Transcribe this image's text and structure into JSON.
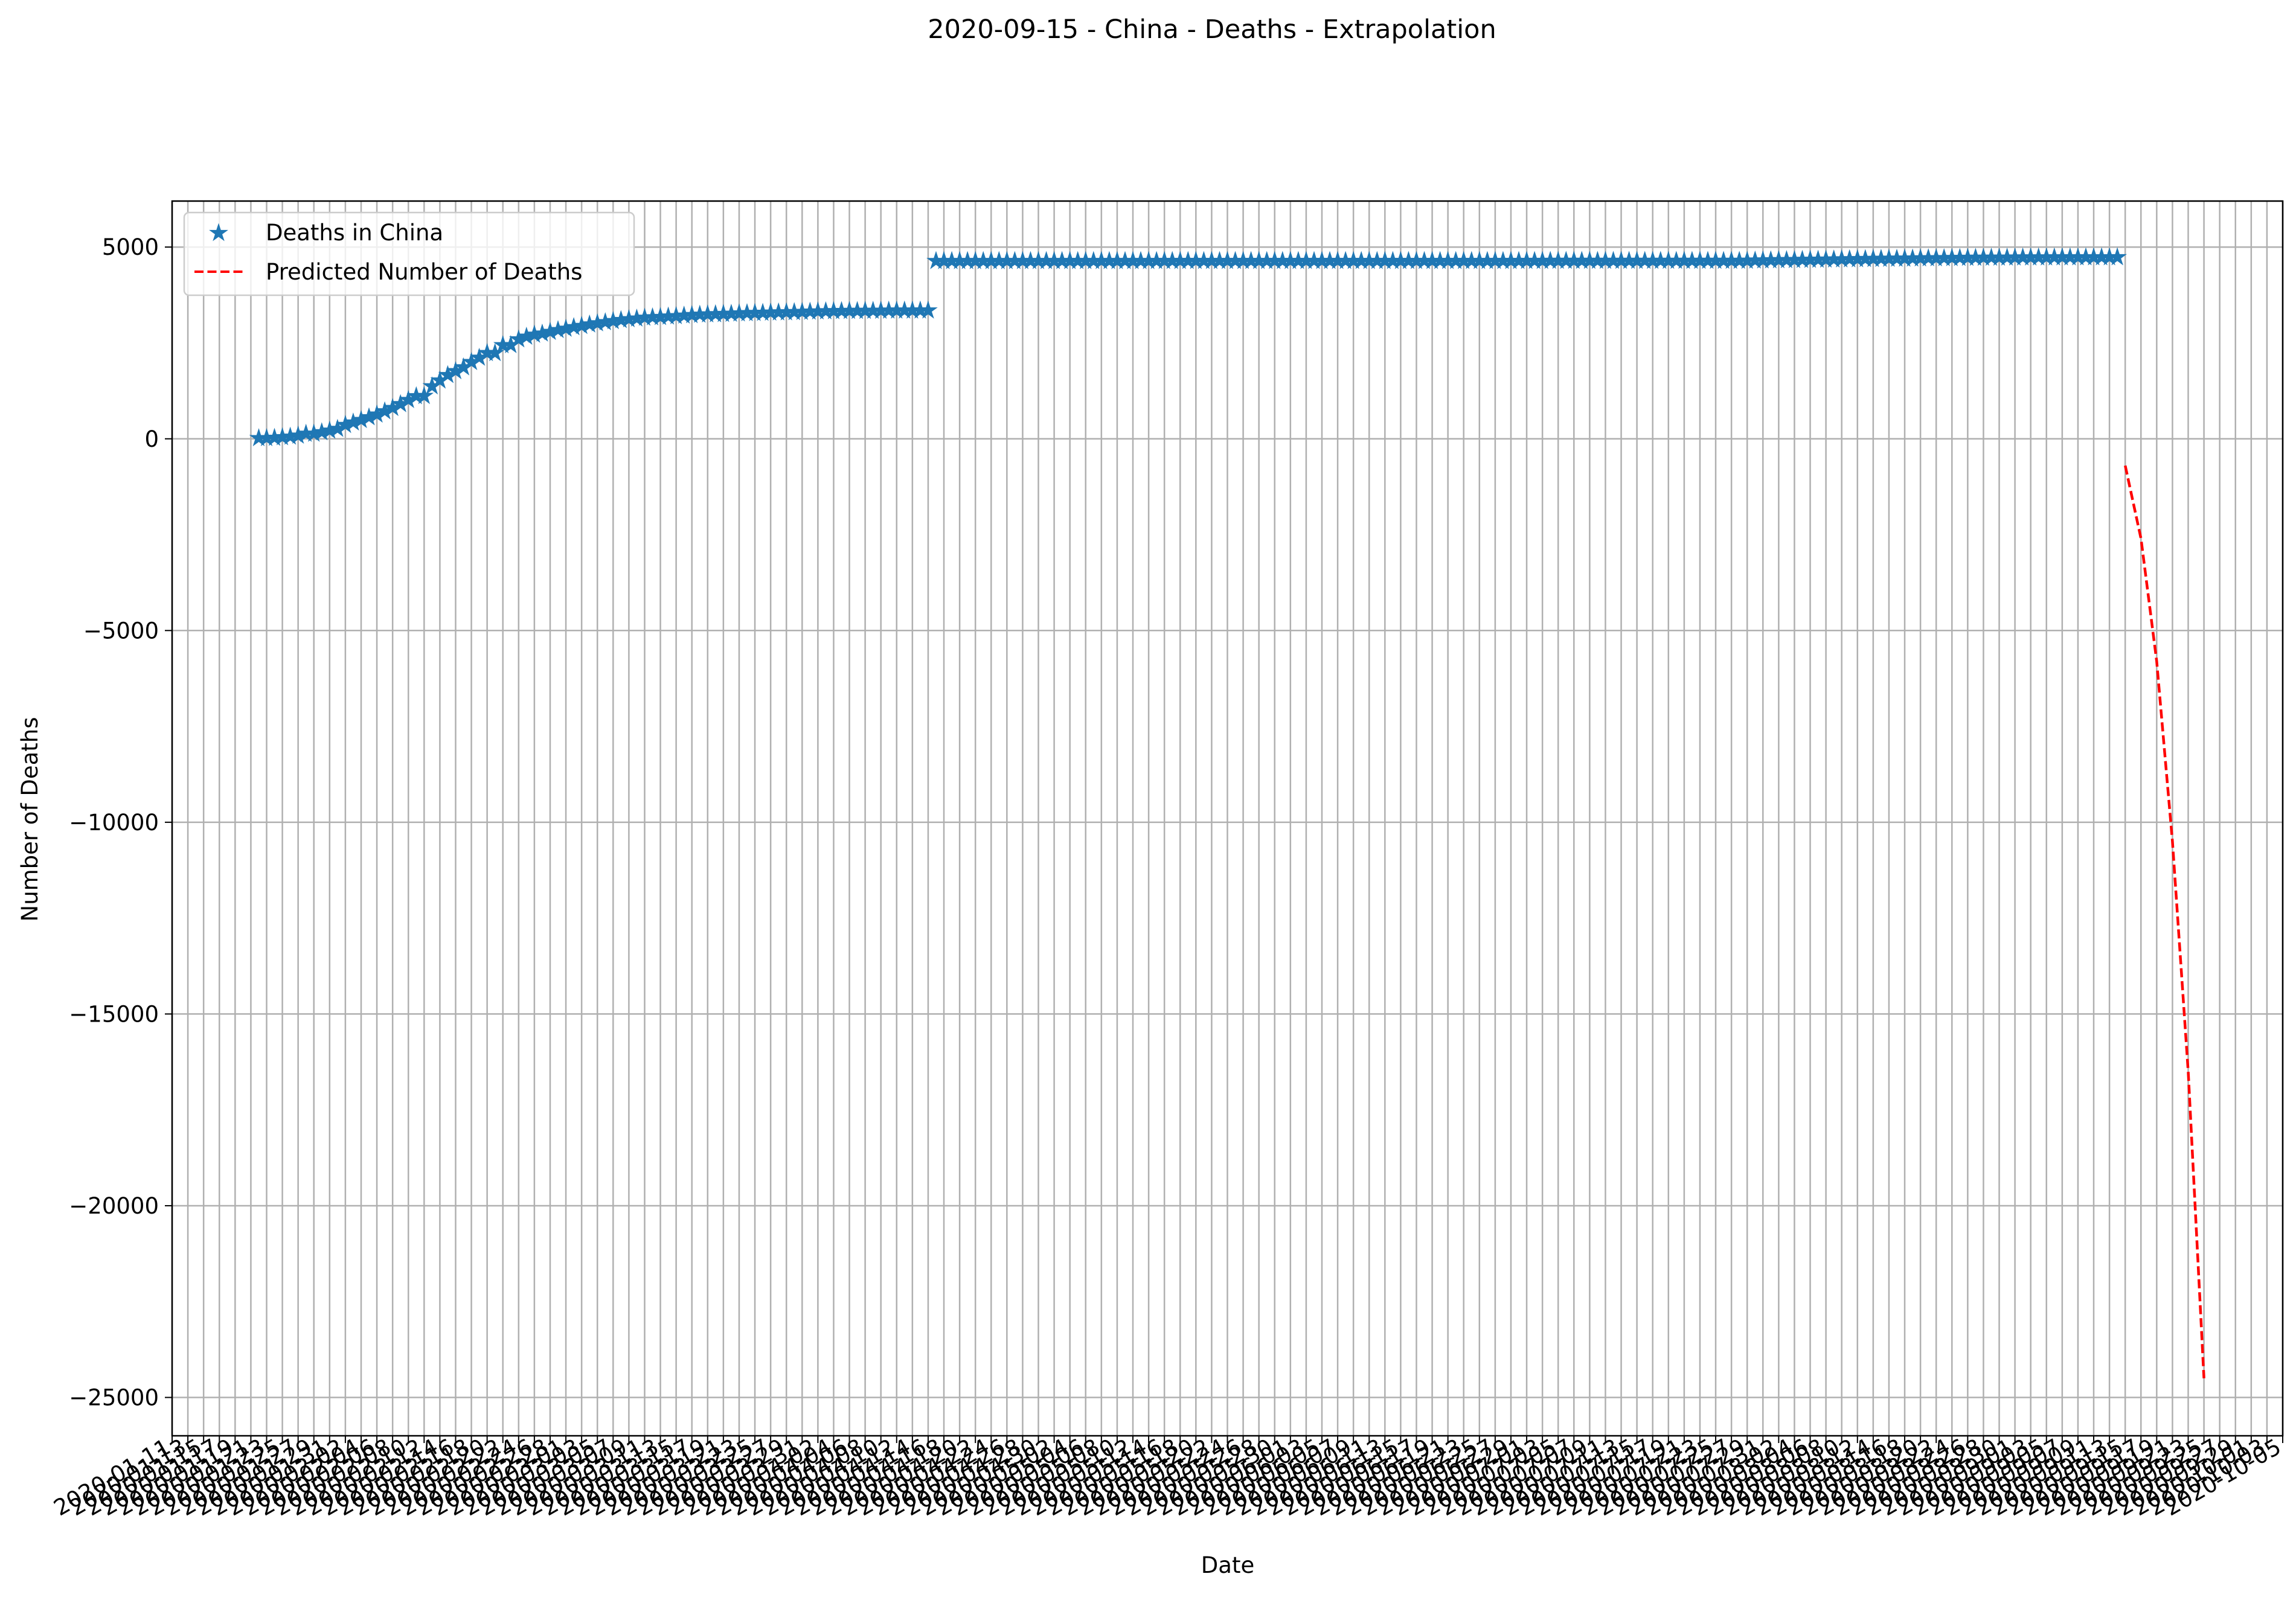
{
  "colors": {
    "actual": "#1f77b4",
    "predicted": "#ff0000",
    "grid": "#b0b0b0",
    "axis": "#000000",
    "legend_border": "#cccccc"
  },
  "chart_data": {
    "type": "line",
    "title": "2020-09-15 - China - Deaths - Extrapolation",
    "xlabel": "Date",
    "ylabel": "Number of Deaths",
    "x_type": "date",
    "xlim": [
      "2020-01-11",
      "2020-10-05"
    ],
    "ylim": [
      -26000,
      6200
    ],
    "y_ticks": [
      5000,
      0,
      -5000,
      -10000,
      -15000,
      -20000,
      -25000
    ],
    "y_tick_labels": [
      "5000",
      "0",
      "−5000",
      "−10000",
      "−15000",
      "−20000",
      "−25000"
    ],
    "x_tick_start": "2020-01-11",
    "x_tick_end": "2020-10-05",
    "x_tick_step_days": 2,
    "x_tick_labels_legible": [
      "2020-01-11",
      "2020-10-03",
      "2020-10-05"
    ],
    "grid": true,
    "legend": {
      "position": "top-left",
      "entries": [
        {
          "label": "Deaths in China",
          "marker": "star",
          "color": "#1f77b4"
        },
        {
          "label": "Predicted Number of Deaths",
          "line": "dashed",
          "color": "#ff0000"
        }
      ]
    },
    "series": [
      {
        "name": "Deaths in China",
        "style": "star-markers",
        "color": "#1f77b4",
        "points": [
          [
            "2020-01-22",
            17
          ],
          [
            "2020-01-23",
            18
          ],
          [
            "2020-01-24",
            26
          ],
          [
            "2020-01-25",
            42
          ],
          [
            "2020-01-26",
            56
          ],
          [
            "2020-01-27",
            82
          ],
          [
            "2020-01-28",
            131
          ],
          [
            "2020-01-29",
            133
          ],
          [
            "2020-01-30",
            171
          ],
          [
            "2020-01-31",
            213
          ],
          [
            "2020-02-01",
            259
          ],
          [
            "2020-02-02",
            361
          ],
          [
            "2020-02-03",
            425
          ],
          [
            "2020-02-04",
            490
          ],
          [
            "2020-02-05",
            562
          ],
          [
            "2020-02-06",
            632
          ],
          [
            "2020-02-07",
            717
          ],
          [
            "2020-02-08",
            804
          ],
          [
            "2020-02-09",
            904
          ],
          [
            "2020-02-10",
            1011
          ],
          [
            "2020-02-11",
            1111
          ],
          [
            "2020-02-12",
            1116
          ],
          [
            "2020-02-13",
            1368
          ],
          [
            "2020-02-14",
            1520
          ],
          [
            "2020-02-15",
            1662
          ],
          [
            "2020-02-16",
            1765
          ],
          [
            "2020-02-17",
            1863
          ],
          [
            "2020-02-18",
            2002
          ],
          [
            "2020-02-19",
            2114
          ],
          [
            "2020-02-20",
            2236
          ],
          [
            "2020-02-21",
            2236
          ],
          [
            "2020-02-22",
            2441
          ],
          [
            "2020-02-23",
            2443
          ],
          [
            "2020-02-24",
            2593
          ],
          [
            "2020-02-25",
            2663
          ],
          [
            "2020-02-26",
            2715
          ],
          [
            "2020-02-27",
            2744
          ],
          [
            "2020-02-28",
            2788
          ],
          [
            "2020-02-29",
            2835
          ],
          [
            "2020-03-01",
            2870
          ],
          [
            "2020-03-02",
            2912
          ],
          [
            "2020-03-03",
            2943
          ],
          [
            "2020-03-04",
            2981
          ],
          [
            "2020-03-05",
            3012
          ],
          [
            "2020-03-06",
            3042
          ],
          [
            "2020-03-07",
            3070
          ],
          [
            "2020-03-08",
            3097
          ],
          [
            "2020-03-09",
            3119
          ],
          [
            "2020-03-10",
            3136
          ],
          [
            "2020-03-11",
            3158
          ],
          [
            "2020-03-12",
            3169
          ],
          [
            "2020-03-13",
            3176
          ],
          [
            "2020-03-14",
            3189
          ],
          [
            "2020-03-15",
            3199
          ],
          [
            "2020-03-16",
            3213
          ],
          [
            "2020-03-17",
            3226
          ],
          [
            "2020-03-18",
            3237
          ],
          [
            "2020-03-19",
            3245
          ],
          [
            "2020-03-20",
            3249
          ],
          [
            "2020-03-21",
            3255
          ],
          [
            "2020-03-22",
            3261
          ],
          [
            "2020-03-23",
            3270
          ],
          [
            "2020-03-24",
            3277
          ],
          [
            "2020-03-25",
            3281
          ],
          [
            "2020-03-26",
            3285
          ],
          [
            "2020-03-27",
            3291
          ],
          [
            "2020-03-28",
            3296
          ],
          [
            "2020-03-29",
            3299
          ],
          [
            "2020-03-30",
            3304
          ],
          [
            "2020-03-31",
            3309
          ],
          [
            "2020-04-01",
            3316
          ],
          [
            "2020-04-02",
            3322
          ],
          [
            "2020-04-03",
            3326
          ],
          [
            "2020-04-04",
            3330
          ],
          [
            "2020-04-05",
            3333
          ],
          [
            "2020-04-06",
            3335
          ],
          [
            "2020-04-07",
            3335
          ],
          [
            "2020-04-08",
            3337
          ],
          [
            "2020-04-09",
            3339
          ],
          [
            "2020-04-10",
            3340
          ],
          [
            "2020-04-11",
            3343
          ],
          [
            "2020-04-12",
            3343
          ],
          [
            "2020-04-13",
            3345
          ],
          [
            "2020-04-14",
            3345
          ],
          [
            "2020-04-15",
            3346
          ],
          [
            "2020-04-16",
            3346
          ],
          [
            "2020-04-17",
            4636
          ],
          [
            "2020-04-18",
            4636
          ],
          [
            "2020-04-19",
            4636
          ],
          [
            "2020-04-20",
            4636
          ],
          [
            "2020-04-21",
            4636
          ],
          [
            "2020-04-22",
            4636
          ],
          [
            "2020-04-23",
            4636
          ],
          [
            "2020-04-24",
            4636
          ],
          [
            "2020-04-25",
            4636
          ],
          [
            "2020-04-26",
            4636
          ],
          [
            "2020-04-27",
            4637
          ],
          [
            "2020-04-28",
            4637
          ],
          [
            "2020-04-29",
            4637
          ],
          [
            "2020-04-30",
            4637
          ],
          [
            "2020-05-01",
            4637
          ],
          [
            "2020-05-02",
            4637
          ],
          [
            "2020-05-03",
            4637
          ],
          [
            "2020-05-04",
            4637
          ],
          [
            "2020-05-05",
            4637
          ],
          [
            "2020-05-06",
            4637
          ],
          [
            "2020-05-07",
            4637
          ],
          [
            "2020-05-08",
            4637
          ],
          [
            "2020-05-09",
            4637
          ],
          [
            "2020-05-10",
            4637
          ],
          [
            "2020-05-11",
            4637
          ],
          [
            "2020-05-12",
            4637
          ],
          [
            "2020-05-13",
            4637
          ],
          [
            "2020-05-14",
            4637
          ],
          [
            "2020-05-15",
            4638
          ],
          [
            "2020-05-16",
            4638
          ],
          [
            "2020-05-17",
            4638
          ],
          [
            "2020-05-18",
            4638
          ],
          [
            "2020-05-19",
            4638
          ],
          [
            "2020-05-20",
            4638
          ],
          [
            "2020-05-21",
            4638
          ],
          [
            "2020-05-22",
            4638
          ],
          [
            "2020-05-23",
            4638
          ],
          [
            "2020-05-24",
            4638
          ],
          [
            "2020-05-25",
            4638
          ],
          [
            "2020-05-26",
            4638
          ],
          [
            "2020-05-27",
            4638
          ],
          [
            "2020-05-28",
            4638
          ],
          [
            "2020-05-29",
            4638
          ],
          [
            "2020-05-30",
            4638
          ],
          [
            "2020-05-31",
            4638
          ],
          [
            "2020-06-01",
            4638
          ],
          [
            "2020-06-02",
            4638
          ],
          [
            "2020-06-03",
            4638
          ],
          [
            "2020-06-04",
            4638
          ],
          [
            "2020-06-05",
            4638
          ],
          [
            "2020-06-06",
            4638
          ],
          [
            "2020-06-07",
            4638
          ],
          [
            "2020-06-08",
            4638
          ],
          [
            "2020-06-09",
            4638
          ],
          [
            "2020-06-10",
            4638
          ],
          [
            "2020-06-11",
            4638
          ],
          [
            "2020-06-12",
            4638
          ],
          [
            "2020-06-13",
            4638
          ],
          [
            "2020-06-14",
            4638
          ],
          [
            "2020-06-15",
            4638
          ],
          [
            "2020-06-16",
            4638
          ],
          [
            "2020-06-17",
            4638
          ],
          [
            "2020-06-18",
            4638
          ],
          [
            "2020-06-19",
            4638
          ],
          [
            "2020-06-20",
            4638
          ],
          [
            "2020-06-21",
            4638
          ],
          [
            "2020-06-22",
            4638
          ],
          [
            "2020-06-23",
            4638
          ],
          [
            "2020-06-24",
            4638
          ],
          [
            "2020-06-25",
            4638
          ],
          [
            "2020-06-26",
            4638
          ],
          [
            "2020-06-27",
            4638
          ],
          [
            "2020-06-28",
            4638
          ],
          [
            "2020-06-29",
            4638
          ],
          [
            "2020-06-30",
            4638
          ],
          [
            "2020-07-01",
            4640
          ],
          [
            "2020-07-02",
            4640
          ],
          [
            "2020-07-03",
            4640
          ],
          [
            "2020-07-04",
            4641
          ],
          [
            "2020-07-05",
            4641
          ],
          [
            "2020-07-06",
            4641
          ],
          [
            "2020-07-07",
            4641
          ],
          [
            "2020-07-08",
            4641
          ],
          [
            "2020-07-09",
            4641
          ],
          [
            "2020-07-10",
            4641
          ],
          [
            "2020-07-11",
            4641
          ],
          [
            "2020-07-12",
            4641
          ],
          [
            "2020-07-13",
            4641
          ],
          [
            "2020-07-14",
            4641
          ],
          [
            "2020-07-15",
            4641
          ],
          [
            "2020-07-16",
            4641
          ],
          [
            "2020-07-17",
            4641
          ],
          [
            "2020-07-18",
            4641
          ],
          [
            "2020-07-19",
            4641
          ],
          [
            "2020-07-20",
            4641
          ],
          [
            "2020-07-21",
            4641
          ],
          [
            "2020-07-22",
            4641
          ],
          [
            "2020-07-23",
            4641
          ],
          [
            "2020-07-24",
            4641
          ],
          [
            "2020-07-25",
            4641
          ],
          [
            "2020-07-26",
            4641
          ],
          [
            "2020-07-27",
            4641
          ],
          [
            "2020-07-28",
            4641
          ],
          [
            "2020-07-29",
            4643
          ],
          [
            "2020-07-30",
            4649
          ],
          [
            "2020-07-31",
            4652
          ],
          [
            "2020-08-01",
            4655
          ],
          [
            "2020-08-02",
            4659
          ],
          [
            "2020-08-03",
            4660
          ],
          [
            "2020-08-04",
            4662
          ],
          [
            "2020-08-05",
            4666
          ],
          [
            "2020-08-06",
            4668
          ],
          [
            "2020-08-07",
            4670
          ],
          [
            "2020-08-08",
            4673
          ],
          [
            "2020-08-09",
            4677
          ],
          [
            "2020-08-10",
            4680
          ],
          [
            "2020-08-11",
            4683
          ],
          [
            "2020-08-12",
            4685
          ],
          [
            "2020-08-13",
            4689
          ],
          [
            "2020-08-14",
            4691
          ],
          [
            "2020-08-15",
            4694
          ],
          [
            "2020-08-16",
            4696
          ],
          [
            "2020-08-17",
            4697
          ],
          [
            "2020-08-18",
            4699
          ],
          [
            "2020-08-19",
            4702
          ],
          [
            "2020-08-20",
            4706
          ],
          [
            "2020-08-21",
            4709
          ],
          [
            "2020-08-22",
            4710
          ],
          [
            "2020-08-23",
            4712
          ],
          [
            "2020-08-24",
            4714
          ],
          [
            "2020-08-25",
            4717
          ],
          [
            "2020-08-26",
            4720
          ],
          [
            "2020-08-27",
            4721
          ],
          [
            "2020-08-28",
            4723
          ],
          [
            "2020-08-29",
            4724
          ],
          [
            "2020-08-30",
            4725
          ],
          [
            "2020-08-31",
            4726
          ],
          [
            "2020-09-01",
            4728
          ],
          [
            "2020-09-02",
            4730
          ],
          [
            "2020-09-03",
            4730
          ],
          [
            "2020-09-04",
            4731
          ],
          [
            "2020-09-05",
            4731
          ],
          [
            "2020-09-06",
            4732
          ],
          [
            "2020-09-07",
            4733
          ],
          [
            "2020-09-08",
            4733
          ],
          [
            "2020-09-09",
            4734
          ],
          [
            "2020-09-10",
            4734
          ],
          [
            "2020-09-11",
            4734
          ],
          [
            "2020-09-12",
            4734
          ],
          [
            "2020-09-13",
            4734
          ],
          [
            "2020-09-14",
            4735
          ]
        ]
      },
      {
        "name": "Predicted Number of Deaths",
        "style": "dashed-line",
        "color": "#ff0000",
        "points": [
          [
            "2020-09-15",
            -700
          ],
          [
            "2020-09-17",
            -2600
          ],
          [
            "2020-09-19",
            -5800
          ],
          [
            "2020-09-21",
            -10500
          ],
          [
            "2020-09-23",
            -16500
          ],
          [
            "2020-09-25",
            -24500
          ]
        ]
      }
    ]
  }
}
